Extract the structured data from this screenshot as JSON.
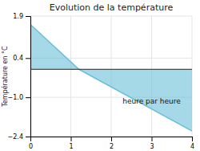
{
  "chart_data": {
    "type": "area",
    "title": "Evolution de la température",
    "y_label": "Température en °C",
    "x": [
      0,
      1.2,
      4.0
    ],
    "values": [
      1.6,
      0.0,
      -2.2
    ],
    "color": "#6bbfd8",
    "xlim": [
      0,
      4
    ],
    "ylim": [
      -2.4,
      1.9
    ],
    "xticks": [
      0,
      1,
      2,
      3,
      4
    ],
    "yticks": [
      {
        "value": -2.4,
        "label": "−2.4"
      },
      {
        "value": -1.0,
        "label": "−1.0"
      },
      0.4,
      1.9
    ],
    "grid": true,
    "annotations": [
      {
        "text": "heure par heure",
        "x": 3.0,
        "y": -1.05
      }
    ]
  }
}
